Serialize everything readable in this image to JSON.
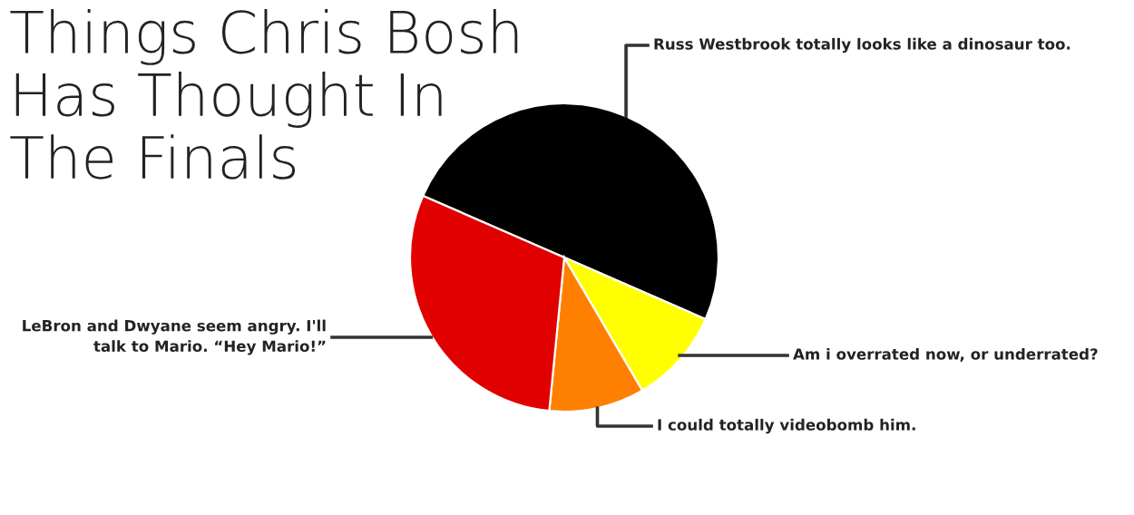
{
  "chart_data": {
    "type": "pie",
    "title": "Things Chris Bosh\nHas Thought In\nThe Finals",
    "categories": [
      "Russ Westbrook totally looks like a dinosaur too.",
      "Am i overrated now, or underrated?",
      "I could totally videobomb him.",
      "LeBron and Dwyane seem angry. I'll\ntalk to Mario. “Hey Mario!”"
    ],
    "values": [
      50,
      10,
      10,
      30
    ],
    "colors": [
      "#000000",
      "#ffff00",
      "#ff8000",
      "#e00000"
    ]
  }
}
